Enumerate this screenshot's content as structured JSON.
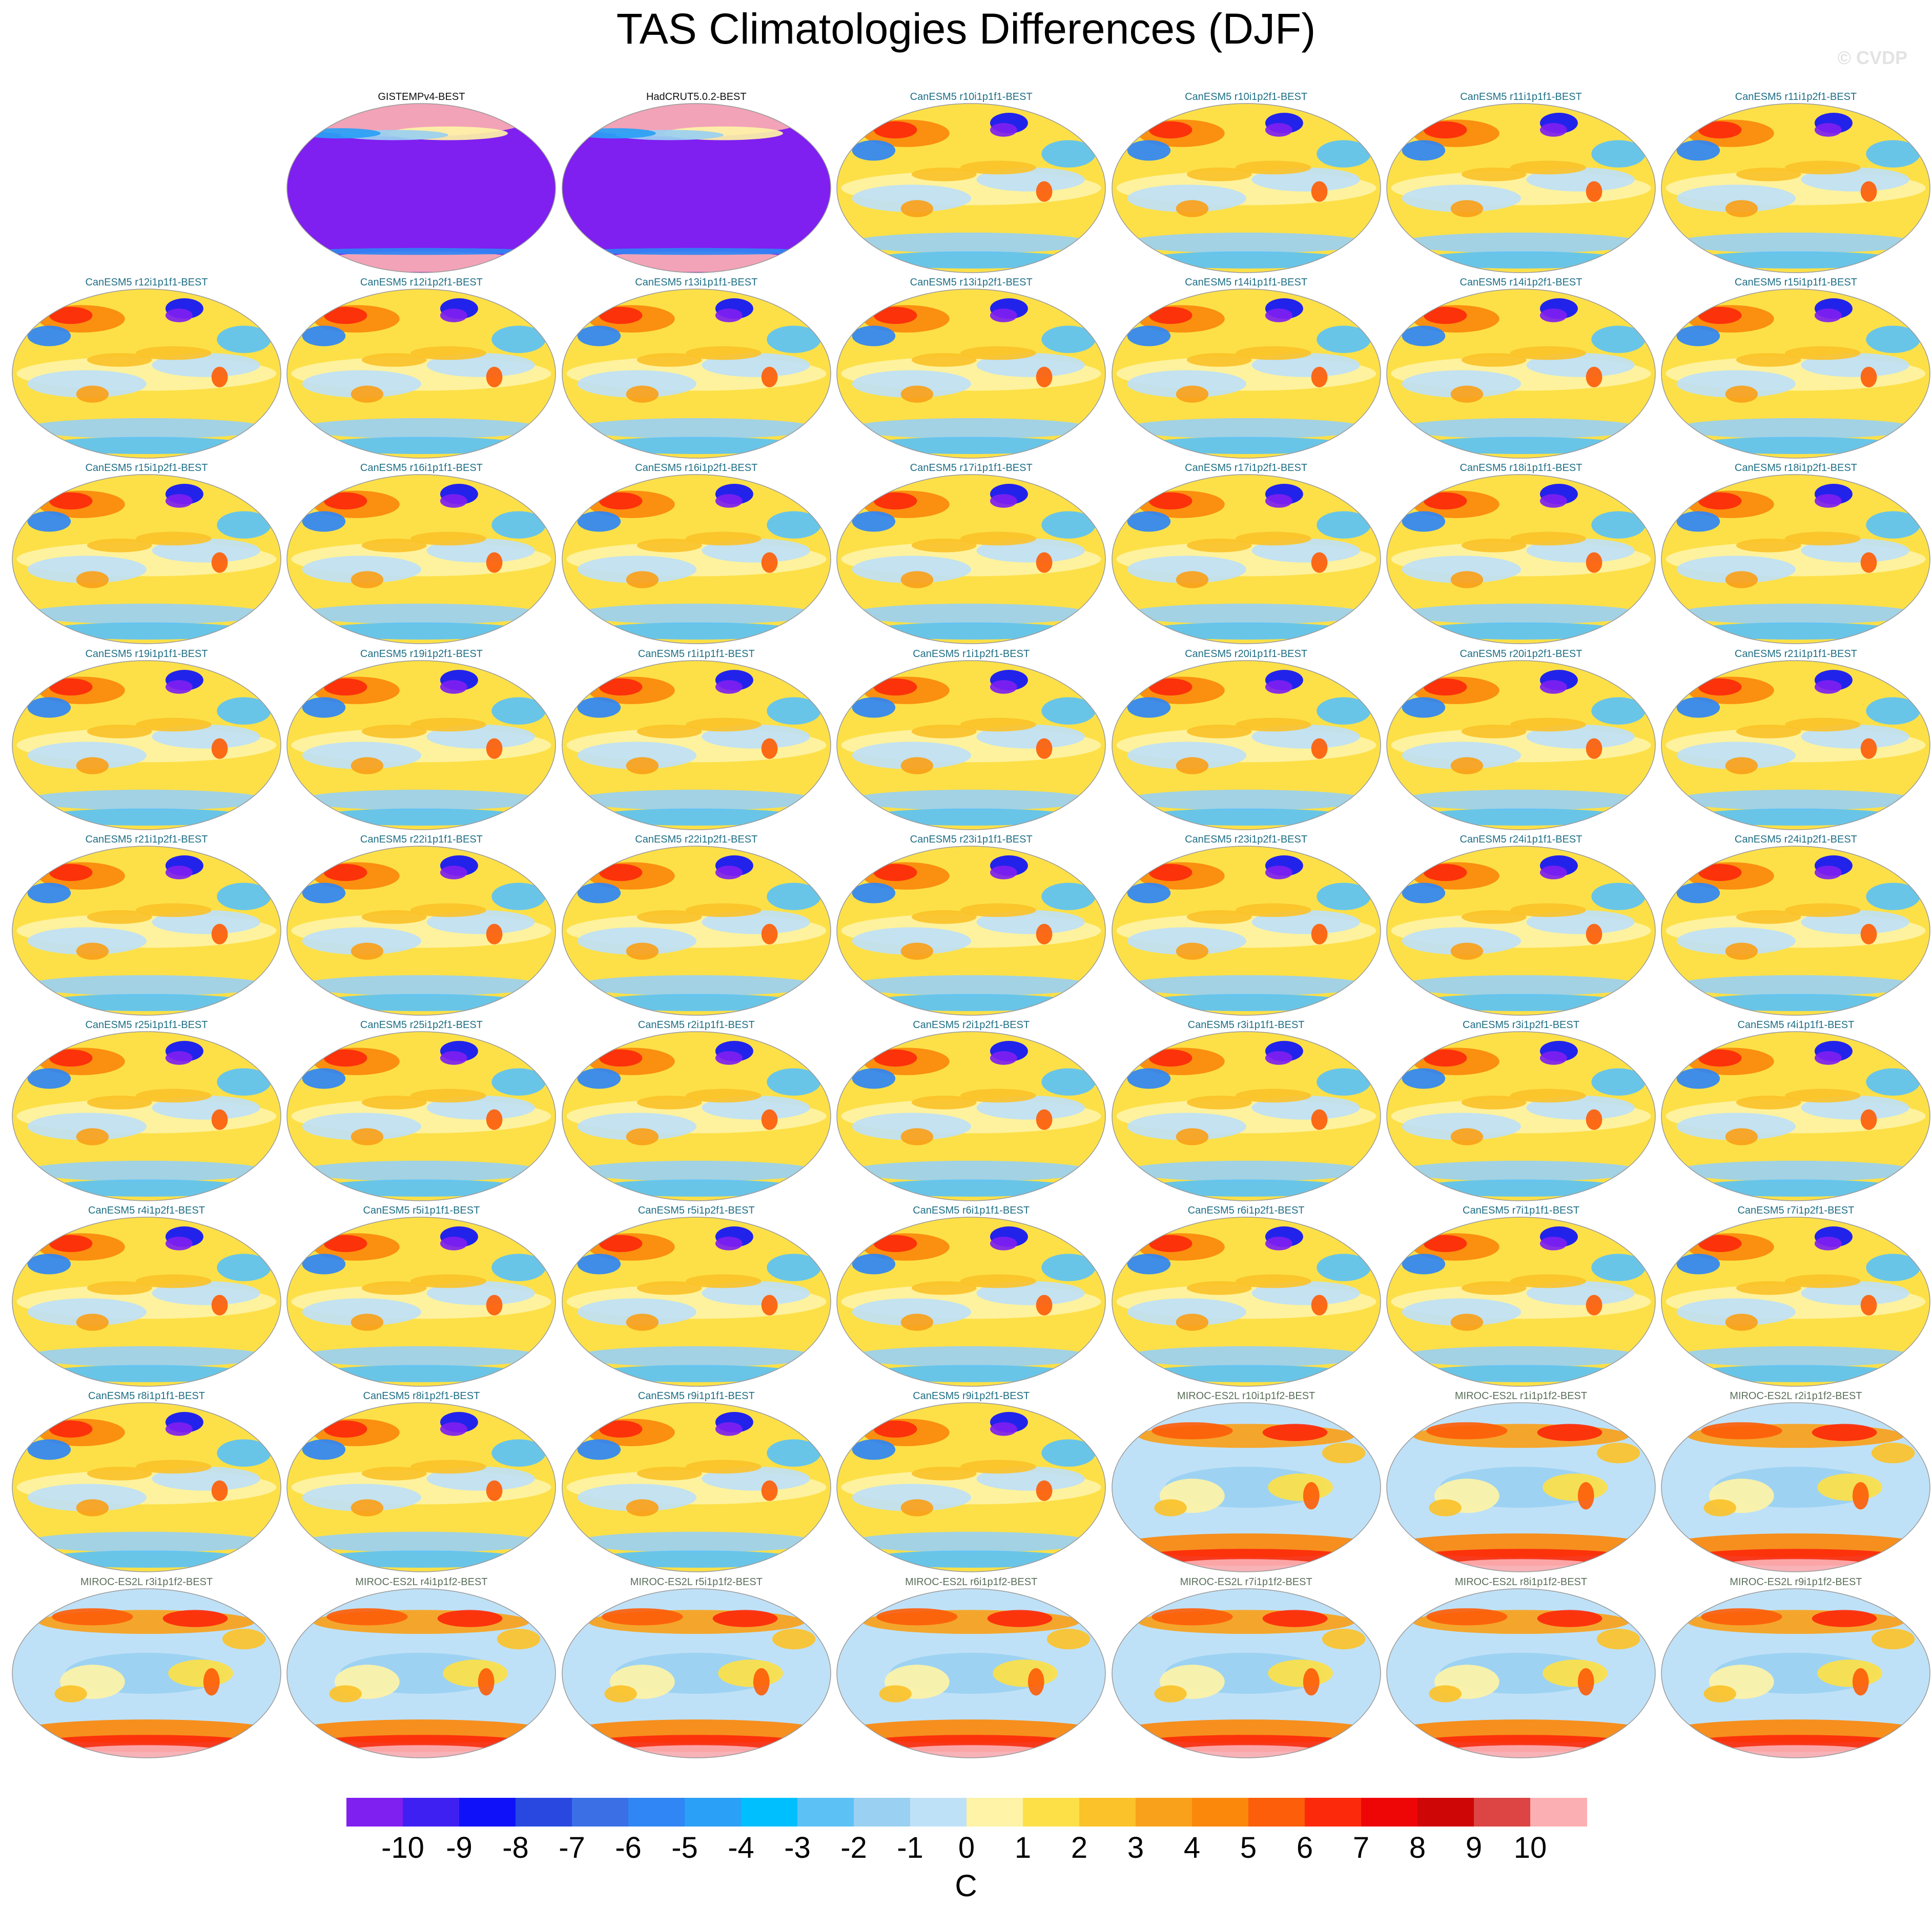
{
  "title": "TAS Climatologies Differences (DJF)",
  "watermark": "© CVDP",
  "chart_data": {
    "type": "heatmap",
    "title": "TAS Climatologies Differences (DJF)",
    "projection": "Robinson world map, Pacific-centred",
    "colorbar": {
      "unit": "C",
      "levels": [
        -10,
        -9,
        -8,
        -7,
        -6,
        -5,
        -4,
        -3,
        -2,
        -1,
        0,
        1,
        2,
        3,
        4,
        5,
        6,
        7,
        8,
        9,
        10
      ],
      "colors": [
        "#7f1ff0",
        "#3f20f2",
        "#0f12f8",
        "#2848e0",
        "#3a6fe6",
        "#2f86f4",
        "#2aa0f6",
        "#00bfff",
        "#5cc2f5",
        "#9ad0f1",
        "#bfe1f7",
        "#fef3a6",
        "#fde048",
        "#fbc22a",
        "#f9a11a",
        "#fb880b",
        "#fc5e0a",
        "#fc2a0a",
        "#ee0606",
        "#ce0606",
        "#dd4444",
        "#fcafb2"
      ]
    },
    "panels": [
      {
        "label": "GISTEMPv4-BEST",
        "style": "obs"
      },
      {
        "label": "HadCRUT5.0.2-BEST",
        "style": "obs"
      },
      {
        "label": "CanESM5 r10i1p1f1-BEST",
        "style": "canesm"
      },
      {
        "label": "CanESM5 r10i1p2f1-BEST",
        "style": "canesm"
      },
      {
        "label": "CanESM5 r11i1p1f1-BEST",
        "style": "canesm"
      },
      {
        "label": "CanESM5 r11i1p2f1-BEST",
        "style": "canesm"
      },
      {
        "label": "CanESM5 r12i1p1f1-BEST",
        "style": "canesm"
      },
      {
        "label": "CanESM5 r12i1p2f1-BEST",
        "style": "canesm"
      },
      {
        "label": "CanESM5 r13i1p1f1-BEST",
        "style": "canesm"
      },
      {
        "label": "CanESM5 r13i1p2f1-BEST",
        "style": "canesm"
      },
      {
        "label": "CanESM5 r14i1p1f1-BEST",
        "style": "canesm"
      },
      {
        "label": "CanESM5 r14i1p2f1-BEST",
        "style": "canesm"
      },
      {
        "label": "CanESM5 r15i1p1f1-BEST",
        "style": "canesm"
      },
      {
        "label": "CanESM5 r15i1p2f1-BEST",
        "style": "canesm"
      },
      {
        "label": "CanESM5 r16i1p1f1-BEST",
        "style": "canesm"
      },
      {
        "label": "CanESM5 r16i1p2f1-BEST",
        "style": "canesm"
      },
      {
        "label": "CanESM5 r17i1p1f1-BEST",
        "style": "canesm"
      },
      {
        "label": "CanESM5 r17i1p2f1-BEST",
        "style": "canesm"
      },
      {
        "label": "CanESM5 r18i1p1f1-BEST",
        "style": "canesm"
      },
      {
        "label": "CanESM5 r18i1p2f1-BEST",
        "style": "canesm"
      },
      {
        "label": "CanESM5 r19i1p1f1-BEST",
        "style": "canesm"
      },
      {
        "label": "CanESM5 r19i1p2f1-BEST",
        "style": "canesm"
      },
      {
        "label": "CanESM5 r1i1p1f1-BEST",
        "style": "canesm"
      },
      {
        "label": "CanESM5 r1i1p2f1-BEST",
        "style": "canesm"
      },
      {
        "label": "CanESM5 r20i1p1f1-BEST",
        "style": "canesm"
      },
      {
        "label": "CanESM5 r20i1p2f1-BEST",
        "style": "canesm"
      },
      {
        "label": "CanESM5 r21i1p1f1-BEST",
        "style": "canesm"
      },
      {
        "label": "CanESM5 r21i1p2f1-BEST",
        "style": "canesm"
      },
      {
        "label": "CanESM5 r22i1p1f1-BEST",
        "style": "canesm"
      },
      {
        "label": "CanESM5 r22i1p2f1-BEST",
        "style": "canesm"
      },
      {
        "label": "CanESM5 r23i1p1f1-BEST",
        "style": "canesm"
      },
      {
        "label": "CanESM5 r23i1p2f1-BEST",
        "style": "canesm"
      },
      {
        "label": "CanESM5 r24i1p1f1-BEST",
        "style": "canesm"
      },
      {
        "label": "CanESM5 r24i1p2f1-BEST",
        "style": "canesm"
      },
      {
        "label": "CanESM5 r25i1p1f1-BEST",
        "style": "canesm"
      },
      {
        "label": "CanESM5 r25i1p2f1-BEST",
        "style": "canesm"
      },
      {
        "label": "CanESM5 r2i1p1f1-BEST",
        "style": "canesm"
      },
      {
        "label": "CanESM5 r2i1p2f1-BEST",
        "style": "canesm"
      },
      {
        "label": "CanESM5 r3i1p1f1-BEST",
        "style": "canesm"
      },
      {
        "label": "CanESM5 r3i1p2f1-BEST",
        "style": "canesm"
      },
      {
        "label": "CanESM5 r4i1p1f1-BEST",
        "style": "canesm"
      },
      {
        "label": "CanESM5 r4i1p2f1-BEST",
        "style": "canesm"
      },
      {
        "label": "CanESM5 r5i1p1f1-BEST",
        "style": "canesm"
      },
      {
        "label": "CanESM5 r5i1p2f1-BEST",
        "style": "canesm"
      },
      {
        "label": "CanESM5 r6i1p1f1-BEST",
        "style": "canesm"
      },
      {
        "label": "CanESM5 r6i1p2f1-BEST",
        "style": "canesm"
      },
      {
        "label": "CanESM5 r7i1p1f1-BEST",
        "style": "canesm"
      },
      {
        "label": "CanESM5 r7i1p2f1-BEST",
        "style": "canesm"
      },
      {
        "label": "CanESM5 r8i1p1f1-BEST",
        "style": "canesm"
      },
      {
        "label": "CanESM5 r8i1p2f1-BEST",
        "style": "canesm"
      },
      {
        "label": "CanESM5 r9i1p1f1-BEST",
        "style": "canesm"
      },
      {
        "label": "CanESM5 r9i1p2f1-BEST",
        "style": "canesm"
      },
      {
        "label": "MIROC-ES2L r10i1p1f2-BEST",
        "style": "miroc"
      },
      {
        "label": "MIROC-ES2L r1i1p1f2-BEST",
        "style": "miroc"
      },
      {
        "label": "MIROC-ES2L r2i1p1f2-BEST",
        "style": "miroc"
      },
      {
        "label": "MIROC-ES2L r3i1p1f2-BEST",
        "style": "miroc"
      },
      {
        "label": "MIROC-ES2L r4i1p1f2-BEST",
        "style": "miroc"
      },
      {
        "label": "MIROC-ES2L r5i1p1f2-BEST",
        "style": "miroc"
      },
      {
        "label": "MIROC-ES2L r6i1p1f2-BEST",
        "style": "miroc"
      },
      {
        "label": "MIROC-ES2L r7i1p1f2-BEST",
        "style": "miroc"
      },
      {
        "label": "MIROC-ES2L r8i1p1f2-BEST",
        "style": "miroc"
      },
      {
        "label": "MIROC-ES2L r9i1p1f2-BEST",
        "style": "miroc"
      }
    ]
  }
}
